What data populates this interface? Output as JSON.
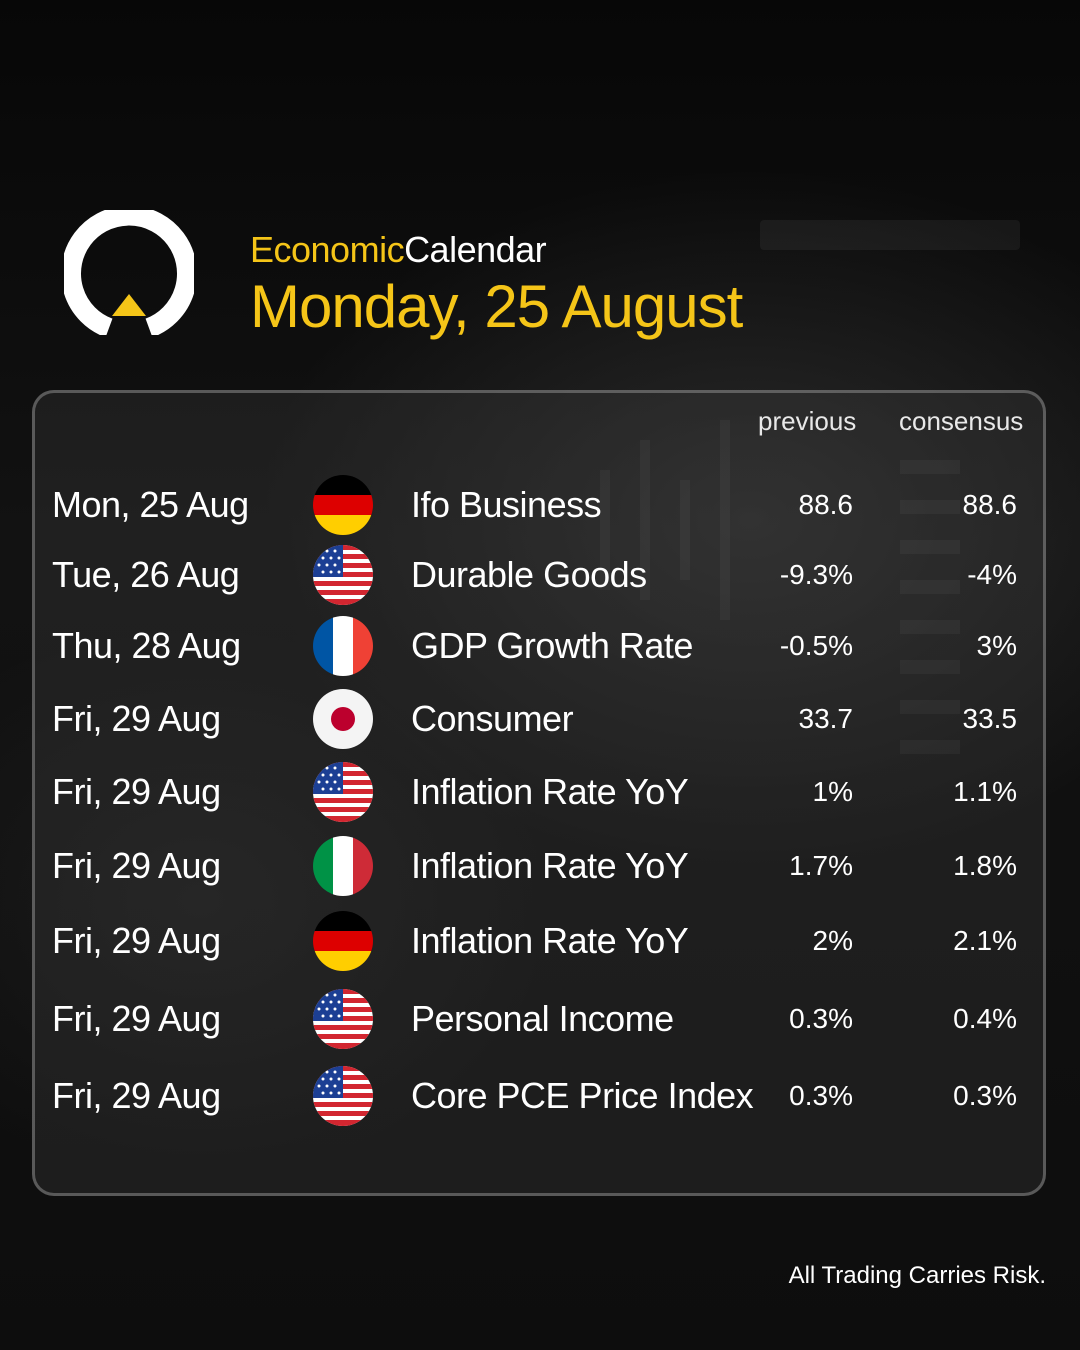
{
  "header": {
    "title_word1": "Economic",
    "title_word2": "Calendar",
    "date_title": "Monday, 25 August"
  },
  "columns": {
    "previous": "previous",
    "consensus": "consensus"
  },
  "events": [
    {
      "date": "Mon, 25 Aug",
      "country_flag": "germany-flag-icon",
      "event": "Ifo Business",
      "previous": "88.6",
      "consensus": "88.6"
    },
    {
      "date": "Tue, 26 Aug",
      "country_flag": "usa-flag-icon",
      "event": "Durable Goods",
      "previous": "-9.3%",
      "consensus": "-4%"
    },
    {
      "date": "Thu, 28 Aug",
      "country_flag": "france-flag-icon",
      "event": "GDP Growth Rate",
      "previous": "-0.5%",
      "consensus": "3%"
    },
    {
      "date": "Fri, 29 Aug",
      "country_flag": "japan-flag-icon",
      "event": "Consumer",
      "previous": "33.7",
      "consensus": "33.5"
    },
    {
      "date": "Fri, 29 Aug",
      "country_flag": "usa-flag-icon",
      "event": "Inflation Rate YoY",
      "previous": "1%",
      "consensus": "1.1%"
    },
    {
      "date": "Fri, 29 Aug",
      "country_flag": "italy-flag-icon",
      "event": "Inflation Rate YoY",
      "previous": "1.7%",
      "consensus": "1.8%"
    },
    {
      "date": "Fri, 29 Aug",
      "country_flag": "germany-flag-icon",
      "event": "Inflation Rate YoY",
      "previous": "2%",
      "consensus": "2.1%"
    },
    {
      "date": "Fri, 29 Aug",
      "country_flag": "usa-flag-icon",
      "event": "Personal Income",
      "previous": "0.3%",
      "consensus": "0.4%"
    },
    {
      "date": "Fri, 29 Aug",
      "country_flag": "usa-flag-icon",
      "event": "Core PCE Price Index",
      "previous": "0.3%",
      "consensus": "0.3%"
    }
  ],
  "footer": {
    "disclaimer": "All Trading Carries Risk."
  },
  "colors": {
    "accent": "#f5c518",
    "background": "#0b0b0b",
    "text": "#ffffff"
  }
}
